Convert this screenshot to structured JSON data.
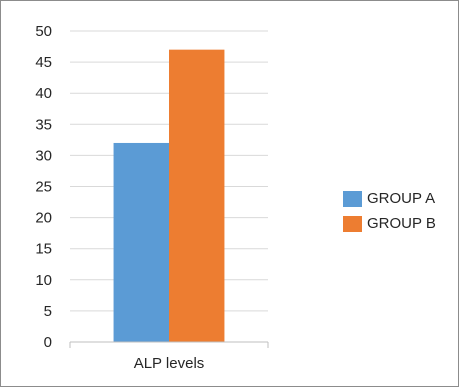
{
  "chart_data": {
    "type": "bar",
    "categories": [
      "ALP levels"
    ],
    "series": [
      {
        "name": "GROUP A",
        "values": [
          32
        ],
        "color": "#5b9bd5"
      },
      {
        "name": "GROUP B",
        "values": [
          47
        ],
        "color": "#ed7d31"
      }
    ],
    "ylim": [
      0,
      50
    ],
    "yticks": [
      "0",
      "5",
      "10",
      "15",
      "20",
      "25",
      "30",
      "35",
      "40",
      "45",
      "50"
    ],
    "grid": true,
    "legend_position": "right"
  }
}
